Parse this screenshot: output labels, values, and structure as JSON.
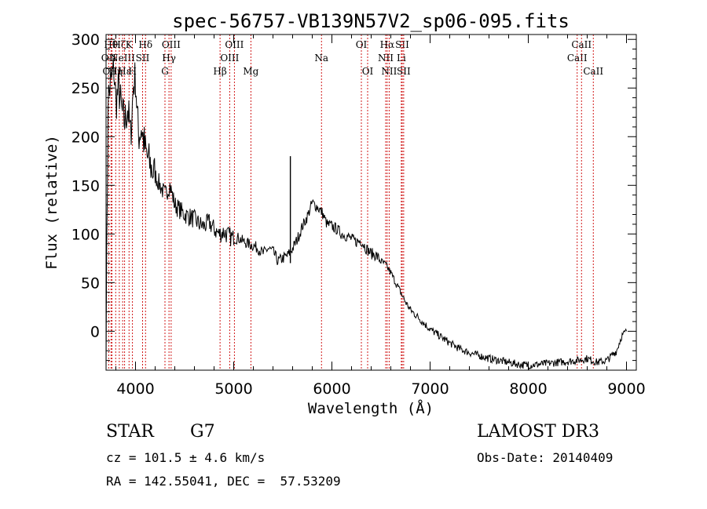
{
  "chart_data": {
    "type": "line",
    "title": "spec-56757-VB139N57V2_sp06-095.fits",
    "xlabel": "Wavelength (Å)",
    "ylabel": "Flux (relative)",
    "xlim": [
      3700,
      9100
    ],
    "ylim": [
      -40,
      305
    ],
    "xticks": [
      4000,
      5000,
      6000,
      7000,
      8000,
      9000
    ],
    "yticks": [
      0,
      50,
      100,
      150,
      200,
      250,
      300
    ],
    "series": [
      {
        "name": "spectrum",
        "x": [
          3700,
          3720,
          3750,
          3780,
          3800,
          3830,
          3860,
          3890,
          3920,
          3950,
          3980,
          4000,
          4030,
          4060,
          4100,
          4150,
          4200,
          4250,
          4300,
          4350,
          4400,
          4450,
          4500,
          4550,
          4600,
          4650,
          4700,
          4750,
          4800,
          4850,
          4900,
          4950,
          5000,
          5050,
          5100,
          5150,
          5200,
          5250,
          5300,
          5350,
          5400,
          5450,
          5500,
          5550,
          5600,
          5650,
          5700,
          5750,
          5800,
          5850,
          5900,
          5950,
          6000,
          6050,
          6100,
          6150,
          6200,
          6250,
          6300,
          6350,
          6400,
          6450,
          6500,
          6550,
          6600,
          6650,
          6700,
          6750,
          6800,
          6900,
          7000,
          7100,
          7200,
          7300,
          7400,
          7500,
          7600,
          7700,
          7800,
          7900,
          8000,
          8100,
          8200,
          8300,
          8400,
          8500,
          8600,
          8700,
          8800,
          8900,
          8950,
          9000
        ],
        "y": [
          -20,
          240,
          255,
          270,
          235,
          250,
          225,
          215,
          230,
          200,
          255,
          260,
          200,
          210,
          185,
          170,
          160,
          150,
          140,
          150,
          130,
          125,
          120,
          118,
          115,
          110,
          108,
          112,
          105,
          100,
          102,
          98,
          95,
          96,
          92,
          90,
          88,
          85,
          80,
          85,
          82,
          72,
          75,
          78,
          85,
          95,
          108,
          118,
          132,
          128,
          122,
          110,
          108,
          105,
          100,
          98,
          95,
          92,
          93,
          85,
          80,
          78,
          72,
          68,
          60,
          50,
          40,
          30,
          22,
          12,
          2,
          -5,
          -12,
          -18,
          -22,
          -25,
          -28,
          -30,
          -32,
          -34,
          -35,
          -34,
          -33,
          -32,
          -31,
          -30,
          -28,
          -32,
          -30,
          -20,
          -5,
          0
        ]
      }
    ],
    "spikes": [
      {
        "x": 5577,
        "y": 180,
        "label": ""
      }
    ],
    "line_markers": [
      {
        "x": 3727,
        "label": "OII",
        "row": 2
      },
      {
        "x": 3750,
        "label": "Hθ",
        "row": 1
      },
      {
        "x": 3760,
        "label": "OIII",
        "row": 3
      },
      {
        "x": 3798,
        "label": "Hη",
        "row": 3
      },
      {
        "x": 3835,
        "label": "Hζ",
        "row": 1
      },
      {
        "x": 3869,
        "label": "NeIII",
        "row": 2
      },
      {
        "x": 3889,
        "label": "Hε",
        "row": 3
      },
      {
        "x": 3934,
        "label": "K",
        "row": 1
      },
      {
        "x": 3969,
        "label": "H",
        "row": 3
      },
      {
        "x": 4072,
        "label": "SII",
        "row": 2
      },
      {
        "x": 4102,
        "label": "Hδ",
        "row": 1
      },
      {
        "x": 4300,
        "label": "G",
        "row": 3
      },
      {
        "x": 4341,
        "label": "Hγ",
        "row": 2
      },
      {
        "x": 4363,
        "label": "OIII",
        "row": 1
      },
      {
        "x": 4861,
        "label": "Hβ",
        "row": 3
      },
      {
        "x": 4959,
        "label": "OIII",
        "row": 2
      },
      {
        "x": 5007,
        "label": "OIII",
        "row": 1
      },
      {
        "x": 5175,
        "label": "Mg",
        "row": 3
      },
      {
        "x": 5894,
        "label": "Na",
        "row": 2
      },
      {
        "x": 6300,
        "label": "OI",
        "row": 1
      },
      {
        "x": 6364,
        "label": "OI",
        "row": 3
      },
      {
        "x": 6548,
        "label": "NII",
        "row": 2
      },
      {
        "x": 6563,
        "label": "Hα",
        "row": 1
      },
      {
        "x": 6583,
        "label": "NII",
        "row": 3
      },
      {
        "x": 6707,
        "label": "Li",
        "row": 2
      },
      {
        "x": 6716,
        "label": "SII",
        "row": 1
      },
      {
        "x": 6731,
        "label": "SII",
        "row": 3
      },
      {
        "x": 8498,
        "label": "CaII",
        "row": 2
      },
      {
        "x": 8542,
        "label": "CaII",
        "row": 1
      },
      {
        "x": 8662,
        "label": "CaII",
        "row": 3
      }
    ]
  },
  "footer": {
    "object_class": "STAR",
    "subclass": "G7",
    "survey": "LAMOST DR3",
    "redshift": "cz = 101.5 ± 4.6 km/s",
    "obs_date": "Obs-Date: 20140409",
    "coords": "RA = 142.55041, DEC =  57.53209"
  }
}
